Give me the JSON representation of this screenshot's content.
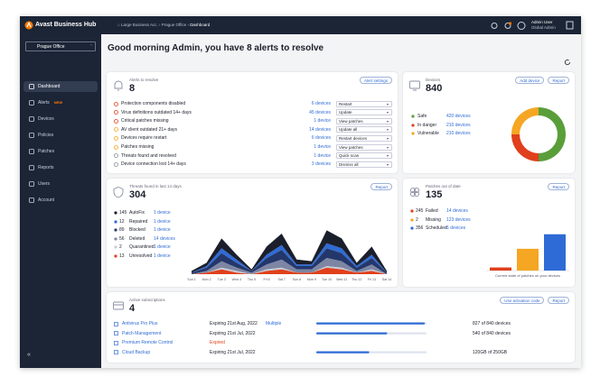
{
  "topbar": {
    "brand": "Avast Business Hub",
    "breadcrumb": [
      "Large Business Acc.",
      "Prague Office",
      "Dashboard"
    ],
    "user": "Admin User",
    "role": "Global Admin"
  },
  "sidebar": {
    "site": "Prague Office",
    "nav": [
      "Dashboard",
      "Alerts",
      "Devices",
      "Policies",
      "Patches",
      "Reports",
      "Users",
      "Account"
    ],
    "new_badge": "NEW"
  },
  "greeting": "Good morning Admin, you have 8 alerts to resolve",
  "alerts": {
    "title": "Alerts to resolve",
    "count": 8,
    "button": "Alert settings",
    "rows": [
      {
        "label": "Protection components disabled",
        "devices": "6 devices",
        "action": "Restart",
        "color": "#e0401c"
      },
      {
        "label": "Virus definitions outdated 14+ days",
        "devices": "45 devices",
        "action": "Update",
        "color": "#e0401c"
      },
      {
        "label": "Critical patches missing",
        "devices": "1 device",
        "action": "View patches",
        "color": "#e0401c"
      },
      {
        "label": "AV client outdated 21+ days",
        "devices": "14 devices",
        "action": "Update all",
        "color": "#f5a623"
      },
      {
        "label": "Devices require restart",
        "devices": "6 devices",
        "action": "Restart devices",
        "color": "#f5a623"
      },
      {
        "label": "Patches missing",
        "devices": "1 device",
        "action": "View patches",
        "color": "#f5a623"
      },
      {
        "label": "Threats found and resolved",
        "devices": "1 device",
        "action": "Quick scan",
        "color": "#8a8fa0"
      },
      {
        "label": "Device connection lost 14+ days",
        "devices": "3 devices",
        "action": "Dismiss all",
        "color": "#8a8fa0"
      }
    ]
  },
  "devices": {
    "title": "Devices",
    "count": 840,
    "buttons": [
      "Add device",
      "Report"
    ],
    "chart": {
      "type": "donut",
      "series": [
        {
          "name": "Safe",
          "value": 420,
          "value_label": "420 devices",
          "color": "#5a9e3a"
        },
        {
          "name": "In danger",
          "value": 210,
          "value_label": "210 devices",
          "color": "#e0401c"
        },
        {
          "name": "Vulnerable",
          "value": 210,
          "value_label": "210 devices",
          "color": "#f5a623"
        }
      ]
    }
  },
  "threats": {
    "title": "Threats found in last 14 days",
    "count": 304,
    "button": "Report",
    "chart": {
      "type": "stream",
      "ylim": [
        0,
        30
      ],
      "x": [
        "Sun 1",
        "Mon 2",
        "Tue 3",
        "Wed 4",
        "Thu 5",
        "Fri 6",
        "Sat 7",
        "Sun 8",
        "Mon 9",
        "Tue 10",
        "Wed 11",
        "Thu 12",
        "Fri 13",
        "Sat 14"
      ],
      "series": [
        {
          "count": 145,
          "name": "AutoFix",
          "link": "1 device",
          "color": "#1b1f2b",
          "values": [
            1,
            2,
            6,
            3,
            1,
            5,
            7,
            3,
            2,
            8,
            6,
            2,
            5,
            1
          ]
        },
        {
          "count": 12,
          "name": "Repaired",
          "link": "1 device",
          "color": "#2f6bd6",
          "values": [
            0,
            1,
            3,
            2,
            0,
            2,
            3,
            1,
            1,
            3,
            3,
            1,
            2,
            0
          ]
        },
        {
          "count": 89,
          "name": "Blocked",
          "link": "1 device",
          "color": "#24376b",
          "values": [
            1,
            2,
            5,
            3,
            1,
            4,
            6,
            2,
            2,
            6,
            5,
            2,
            4,
            1
          ]
        },
        {
          "count": 56,
          "name": "Deleted",
          "link": "14 devices",
          "color": "#7d86a3",
          "values": [
            0,
            1,
            4,
            2,
            1,
            3,
            5,
            2,
            2,
            5,
            4,
            1,
            3,
            0
          ]
        },
        {
          "count": 2,
          "name": "Quarantined",
          "link": "1 device",
          "color": "#c9ccd6",
          "values": [
            0,
            0,
            1,
            1,
            0,
            1,
            1,
            0,
            0,
            1,
            1,
            0,
            1,
            0
          ]
        },
        {
          "count": 13,
          "name": "Unresolved",
          "link": "1 device",
          "color": "#e0401c",
          "values": [
            0,
            1,
            3,
            1,
            0,
            2,
            3,
            1,
            1,
            4,
            3,
            1,
            2,
            0
          ]
        }
      ]
    }
  },
  "patches": {
    "title": "Patches out of date",
    "count": 135,
    "button": "Report",
    "legend": [
      {
        "count": 245,
        "name": "Failed",
        "link": "14 devices",
        "color": "#e0401c"
      },
      {
        "count": 2,
        "name": "Missing",
        "link": "123 devices",
        "color": "#f5a623"
      },
      {
        "count": 356,
        "name": "Scheduled",
        "link": "6 devices",
        "color": "#2f6bd6"
      }
    ],
    "chart": {
      "type": "bar",
      "caption": "Current state of patches on your devices",
      "ylim": [
        0,
        40
      ],
      "bars": [
        {
          "value": 3,
          "color": "#e0401c"
        },
        {
          "value": 21,
          "color": "#f5a623"
        },
        {
          "value": 35,
          "color": "#2f6bd6"
        }
      ]
    }
  },
  "subscriptions": {
    "title": "Active subscriptions",
    "count": 4,
    "buttons": [
      "Use activation code",
      "Report"
    ],
    "rows": [
      {
        "name": "Antivirus Pro Plus",
        "expiry": "Expiring 21st Aug, 2022",
        "extra": "Multiple",
        "used": 827,
        "total": 840,
        "usage": "827 of 840 devices"
      },
      {
        "name": "Patch Management",
        "expiry": "Expiring 21st Jul, 2022",
        "used": 540,
        "total": 840,
        "usage": "540 of 840 devices"
      },
      {
        "name": "Premium Remote Control",
        "expiry": "Expired"
      },
      {
        "name": "Cloud Backup",
        "expiry": "Expiring 21st Jul, 2022",
        "used": 120,
        "total": 250,
        "usage": "120GB of 250GB"
      }
    ]
  }
}
